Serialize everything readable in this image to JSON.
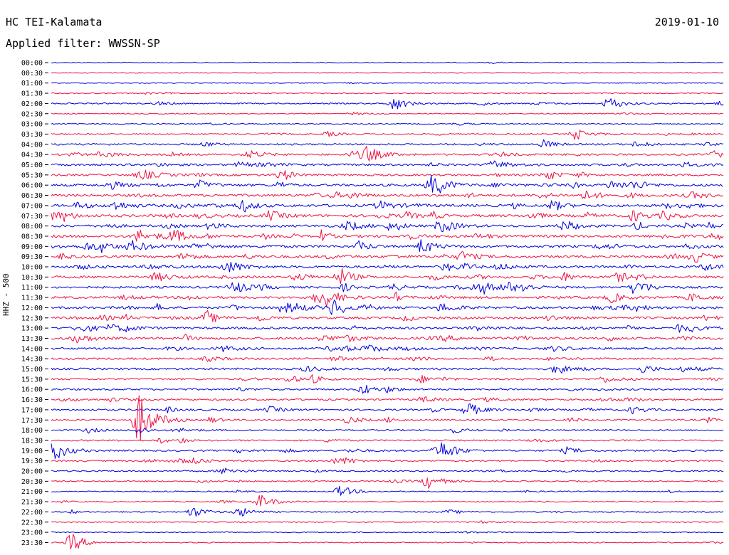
{
  "header": {
    "station": "HC TEI-Kalamata",
    "date": "2019-01-10",
    "filter": "Applied filter: WWSSN-SP"
  },
  "chart_data": {
    "type": "line",
    "title": "HC TEI-Kalamata",
    "subtitle": "Applied filter: WWSSN-SP",
    "ylabel": "HHZ - 500",
    "xlabel": "",
    "grid": false,
    "series_colors": [
      "#0000dd",
      "#ee1144"
    ],
    "rows": [
      {
        "label": "00:00",
        "level": 0.4
      },
      {
        "label": "00:30",
        "level": 0.6
      },
      {
        "label": "01:00",
        "level": 0.3
      },
      {
        "label": "01:30",
        "level": 0.9
      },
      {
        "label": "02:00",
        "level": 1.8
      },
      {
        "label": "02:30",
        "level": 1.0
      },
      {
        "label": "03:00",
        "level": 1.2
      },
      {
        "label": "03:30",
        "level": 2.5
      },
      {
        "label": "04:00",
        "level": 3.5
      },
      {
        "label": "04:30",
        "level": 4.0
      },
      {
        "label": "05:00",
        "level": 4.5
      },
      {
        "label": "05:30",
        "level": 4.5
      },
      {
        "label": "06:00",
        "level": 5.5
      },
      {
        "label": "06:30",
        "level": 6.0
      },
      {
        "label": "07:00",
        "level": 6.5
      },
      {
        "label": "07:30",
        "level": 6.5
      },
      {
        "label": "08:00",
        "level": 6.0
      },
      {
        "label": "08:30",
        "level": 6.5
      },
      {
        "label": "09:00",
        "level": 6.0
      },
      {
        "label": "09:30",
        "level": 6.0
      },
      {
        "label": "10:00",
        "level": 5.5
      },
      {
        "label": "10:30",
        "level": 5.5
      },
      {
        "label": "11:00",
        "level": 5.0
      },
      {
        "label": "11:30",
        "level": 5.5
      },
      {
        "label": "12:00",
        "level": 5.5
      },
      {
        "label": "12:30",
        "level": 5.5
      },
      {
        "label": "13:00",
        "level": 5.0
      },
      {
        "label": "13:30",
        "level": 5.5
      },
      {
        "label": "14:00",
        "level": 4.5
      },
      {
        "label": "14:30",
        "level": 4.0
      },
      {
        "label": "15:00",
        "level": 4.5
      },
      {
        "label": "15:30",
        "level": 4.0
      },
      {
        "label": "16:00",
        "level": 3.5
      },
      {
        "label": "16:30",
        "level": 3.5
      },
      {
        "label": "17:00",
        "level": 3.5
      },
      {
        "label": "17:30",
        "level": 3.5
      },
      {
        "label": "18:00",
        "level": 3.0
      },
      {
        "label": "18:30",
        "level": 3.0
      },
      {
        "label": "19:00",
        "level": 3.5
      },
      {
        "label": "19:30",
        "level": 3.0
      },
      {
        "label": "20:00",
        "level": 2.5
      },
      {
        "label": "20:30",
        "level": 2.0
      },
      {
        "label": "21:00",
        "level": 1.5
      },
      {
        "label": "21:30",
        "level": 1.5
      },
      {
        "label": "22:00",
        "level": 1.5
      },
      {
        "label": "22:30",
        "level": 1.0
      },
      {
        "label": "23:00",
        "level": 0.7
      },
      {
        "label": "23:30",
        "level": 1.0
      }
    ],
    "events": [
      {
        "row": 4,
        "t": 0.51,
        "amp": 10
      },
      {
        "row": 4,
        "t": 0.83,
        "amp": 9
      },
      {
        "row": 7,
        "t": 0.78,
        "amp": 8
      },
      {
        "row": 9,
        "t": 0.47,
        "amp": 10
      },
      {
        "row": 12,
        "t": 0.57,
        "amp": 12
      },
      {
        "row": 16,
        "t": 0.58,
        "amp": 10
      },
      {
        "row": 21,
        "t": 0.43,
        "amp": 10
      },
      {
        "row": 22,
        "t": 0.87,
        "amp": 12
      },
      {
        "row": 24,
        "t": 0.42,
        "amp": 12
      },
      {
        "row": 35,
        "t": 0.13,
        "amp": 38
      },
      {
        "row": 34,
        "t": 0.62,
        "amp": 10
      },
      {
        "row": 38,
        "t": 0.005,
        "amp": 14
      },
      {
        "row": 38,
        "t": 0.58,
        "amp": 12
      },
      {
        "row": 41,
        "t": 0.56,
        "amp": 10
      },
      {
        "row": 42,
        "t": 0.43,
        "amp": 8
      },
      {
        "row": 43,
        "t": 0.31,
        "amp": 10
      },
      {
        "row": 44,
        "t": 0.21,
        "amp": 8
      },
      {
        "row": 44,
        "t": 0.28,
        "amp": 7
      },
      {
        "row": 47,
        "t": 0.03,
        "amp": 14
      }
    ]
  }
}
